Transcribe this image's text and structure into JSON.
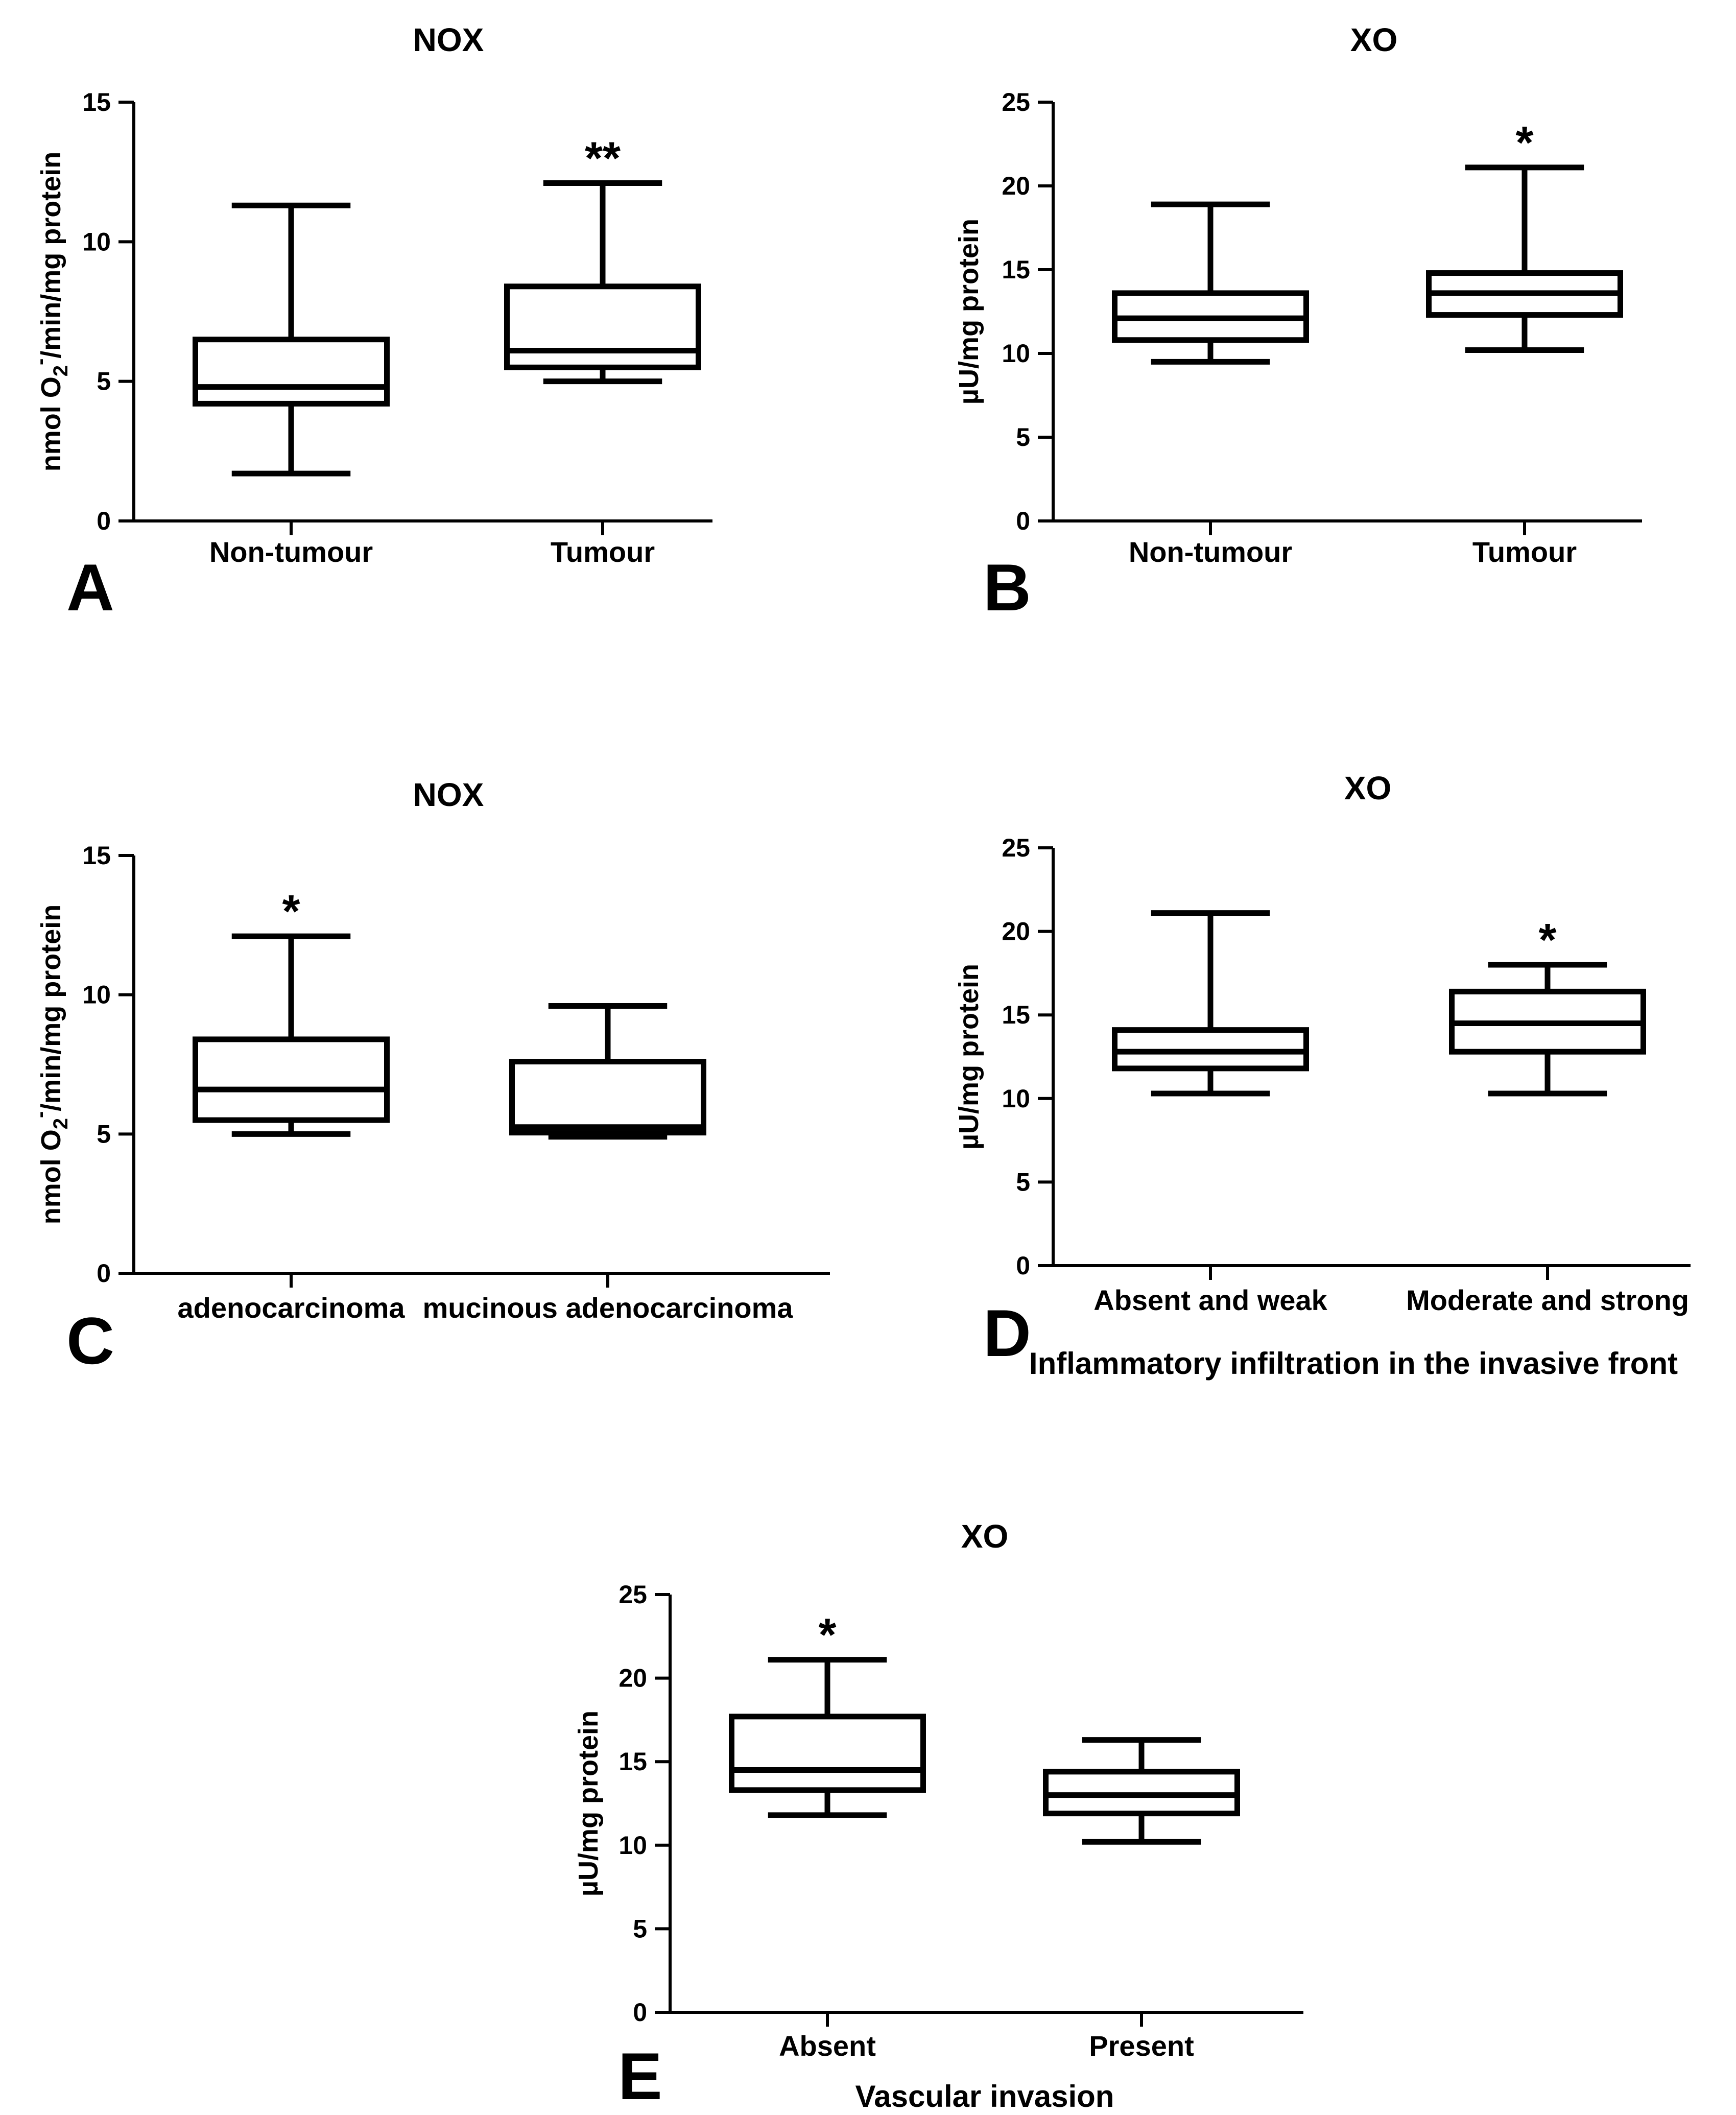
{
  "chart_data": [
    {
      "type": "box",
      "panel_letter": "A",
      "title": "NOX",
      "ylabel": "nmol O2-/min/mg protein",
      "ylabel_parts": {
        "pre": "nmol O",
        "sub": "2",
        "sup": "-",
        "post": "/min/mg protein"
      },
      "xlabel": "",
      "ylim": [
        0,
        15
      ],
      "yticks": [
        0,
        5,
        10,
        15
      ],
      "categories": [
        "Non-tumour",
        "Tumour"
      ],
      "boxes": [
        {
          "min": 1.7,
          "q1": 4.2,
          "median": 4.8,
          "q3": 6.5,
          "max": 11.3,
          "significance": ""
        },
        {
          "min": 5.0,
          "q1": 5.5,
          "median": 6.1,
          "q3": 8.4,
          "max": 12.1,
          "significance": "**"
        }
      ]
    },
    {
      "type": "box",
      "panel_letter": "B",
      "title": "XO",
      "ylabel": "µU/mg protein",
      "xlabel": "",
      "ylim": [
        0,
        25
      ],
      "yticks": [
        0,
        5,
        10,
        15,
        20,
        25
      ],
      "categories": [
        "Non-tumour",
        "Tumour"
      ],
      "boxes": [
        {
          "min": 9.5,
          "q1": 10.8,
          "median": 12.1,
          "q3": 13.6,
          "max": 18.9,
          "significance": ""
        },
        {
          "min": 10.2,
          "q1": 12.3,
          "median": 13.6,
          "q3": 14.8,
          "max": 21.1,
          "significance": "*"
        }
      ]
    },
    {
      "type": "box",
      "panel_letter": "C",
      "title": "NOX",
      "ylabel": "nmol O2-/min/mg protein",
      "ylabel_parts": {
        "pre": "nmol O",
        "sub": "2",
        "sup": "-",
        "post": "/min/mg protein"
      },
      "xlabel": "",
      "ylim": [
        0,
        15
      ],
      "yticks": [
        0,
        5,
        10,
        15
      ],
      "categories": [
        "adenocarcinoma",
        "mucinous adenocarcinoma"
      ],
      "boxes": [
        {
          "min": 5.0,
          "q1": 5.5,
          "median": 6.6,
          "q3": 8.4,
          "max": 12.1,
          "significance": "*"
        },
        {
          "min": 4.9,
          "q1": 5.05,
          "median": 5.25,
          "q3": 7.6,
          "max": 9.6,
          "significance": ""
        }
      ]
    },
    {
      "type": "box",
      "panel_letter": "D",
      "title": "XO",
      "ylabel": "µU/mg protein",
      "xlabel": "Inflammatory infiltration in the invasive front",
      "ylim": [
        0,
        25
      ],
      "yticks": [
        0,
        5,
        10,
        15,
        20,
        25
      ],
      "categories": [
        "Absent and weak",
        "Moderate and strong"
      ],
      "boxes": [
        {
          "min": 10.3,
          "q1": 11.8,
          "median": 12.8,
          "q3": 14.1,
          "max": 21.1,
          "significance": ""
        },
        {
          "min": 10.3,
          "q1": 12.8,
          "median": 14.5,
          "q3": 16.4,
          "max": 18.0,
          "significance": "*"
        }
      ]
    },
    {
      "type": "box",
      "panel_letter": "E",
      "title": "XO",
      "ylabel": "µU/mg protein",
      "xlabel": "Vascular invasion",
      "ylim": [
        0,
        25
      ],
      "yticks": [
        0,
        5,
        10,
        15,
        20,
        25
      ],
      "categories": [
        "Absent",
        "Present"
      ],
      "boxes": [
        {
          "min": 11.8,
          "q1": 13.3,
          "median": 14.5,
          "q3": 17.7,
          "max": 21.1,
          "significance": "*"
        },
        {
          "min": 10.2,
          "q1": 11.9,
          "median": 13.0,
          "q3": 14.4,
          "max": 16.3,
          "significance": ""
        }
      ]
    }
  ]
}
